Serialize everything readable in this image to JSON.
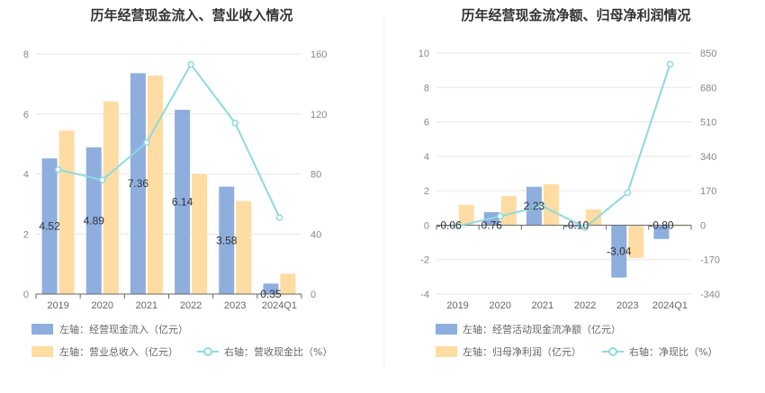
{
  "chart_data": [
    {
      "type": "bar",
      "title": "历年经营现金流入、营业收入情况",
      "categories": [
        "2019",
        "2020",
        "2021",
        "2022",
        "2023",
        "2024Q1"
      ],
      "left_axis": {
        "ylim": [
          0,
          8
        ],
        "ticks": [
          "0",
          "2",
          "4",
          "6",
          "8"
        ]
      },
      "right_axis": {
        "ylim": [
          0,
          160
        ],
        "ticks": [
          "0",
          "40",
          "80",
          "120",
          "160"
        ]
      },
      "series": [
        {
          "name": "左轴：经营现金流入（亿元）",
          "axis": "left",
          "kind": "bar",
          "color": "#8eaede",
          "values": [
            4.52,
            4.89,
            7.36,
            6.14,
            3.58,
            0.35
          ],
          "labels": [
            "4.52",
            "4.89",
            "7.36",
            "6.14",
            "3.58",
            "0.35"
          ]
        },
        {
          "name": "左轴：营业总收入（亿元）",
          "axis": "left",
          "kind": "bar",
          "color": "#ffdca3",
          "values": [
            5.45,
            6.42,
            7.28,
            4.0,
            3.1,
            0.68
          ]
        },
        {
          "name": "右轴：营收现金比（%）",
          "axis": "right",
          "kind": "line",
          "color": "#8fd9dd",
          "values": [
            83,
            76,
            101,
            153,
            114,
            51
          ]
        }
      ],
      "legend_position": "bottom-left"
    },
    {
      "type": "bar",
      "title": "历年经营现金流净额、归母净利润情况",
      "categories": [
        "2019",
        "2020",
        "2021",
        "2022",
        "2023",
        "2024Q1"
      ],
      "left_axis": {
        "ylim": [
          -4,
          10
        ],
        "ticks": [
          "-4",
          "-2",
          "0",
          "2",
          "4",
          "6",
          "8",
          "10"
        ]
      },
      "right_axis": {
        "ylim": [
          -340,
          850
        ],
        "ticks": [
          "-340",
          "-170",
          "0",
          "170",
          "340",
          "510",
          "680",
          "850"
        ]
      },
      "series": [
        {
          "name": "左轴：经营活动现金流净额（亿元）",
          "axis": "left",
          "kind": "bar",
          "color": "#8eaede",
          "values": [
            -0.06,
            0.76,
            2.23,
            -0.1,
            -3.04,
            -0.8
          ],
          "labels": [
            "-0.06",
            "0.76",
            "2.23",
            "-0.10",
            "-3.04",
            "-0.80"
          ]
        },
        {
          "name": "左轴：归母净利润（亿元）",
          "axis": "left",
          "kind": "bar",
          "color": "#ffdca3",
          "values": [
            1.18,
            1.7,
            2.38,
            0.92,
            -1.9,
            -0.06
          ]
        },
        {
          "name": "右轴：净现比（%）",
          "axis": "right",
          "kind": "line",
          "color": "#8fd9dd",
          "values": [
            -5,
            45,
            94,
            -11,
            160,
            795
          ]
        }
      ],
      "legend_position": "bottom-left"
    }
  ]
}
